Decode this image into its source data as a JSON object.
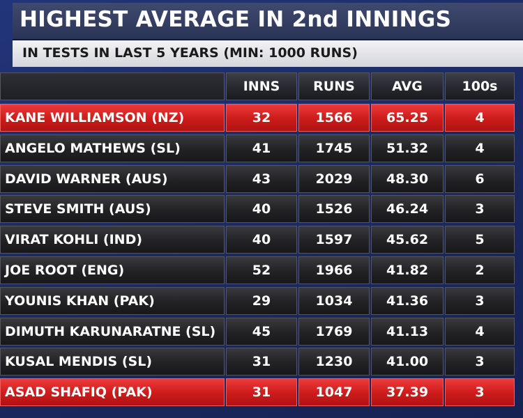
{
  "header": {
    "title": "HIGHEST AVERAGE IN 2nd INNINGS",
    "subtitle": "IN TESTS IN LAST 5 YEARS (MIN: 1000 RUNS)"
  },
  "colors": {
    "highlight": "#d42020",
    "row": "#222225",
    "background": "#1d2c66"
  },
  "table": {
    "columns": [
      "",
      "INNS",
      "RUNS",
      "AVG",
      "100s"
    ],
    "rows": [
      {
        "player": "KANE WILLIAMSON (NZ)",
        "inns": "32",
        "runs": "1566",
        "avg": "65.25",
        "hundreds": "4",
        "highlight": true
      },
      {
        "player": "ANGELO MATHEWS (SL)",
        "inns": "41",
        "runs": "1745",
        "avg": "51.32",
        "hundreds": "4",
        "highlight": false
      },
      {
        "player": "DAVID WARNER (AUS)",
        "inns": "43",
        "runs": "2029",
        "avg": "48.30",
        "hundreds": "6",
        "highlight": false
      },
      {
        "player": "STEVE SMITH (AUS)",
        "inns": "40",
        "runs": "1526",
        "avg": "46.24",
        "hundreds": "3",
        "highlight": false
      },
      {
        "player": "VIRAT KOHLI (IND)",
        "inns": "40",
        "runs": "1597",
        "avg": "45.62",
        "hundreds": "5",
        "highlight": false
      },
      {
        "player": "JOE ROOT (ENG)",
        "inns": "52",
        "runs": "1966",
        "avg": "41.82",
        "hundreds": "2",
        "highlight": false
      },
      {
        "player": "YOUNIS KHAN (PAK)",
        "inns": "29",
        "runs": "1034",
        "avg": "41.36",
        "hundreds": "3",
        "highlight": false
      },
      {
        "player": "DIMUTH KARUNARATNE (SL)",
        "inns": "45",
        "runs": "1769",
        "avg": "41.13",
        "hundreds": "4",
        "highlight": false
      },
      {
        "player": "KUSAL MENDIS (SL)",
        "inns": "31",
        "runs": "1230",
        "avg": "41.00",
        "hundreds": "3",
        "highlight": false
      },
      {
        "player": "ASAD SHAFIQ (PAK)",
        "inns": "31",
        "runs": "1047",
        "avg": "37.39",
        "hundreds": "3",
        "highlight": true
      }
    ]
  }
}
